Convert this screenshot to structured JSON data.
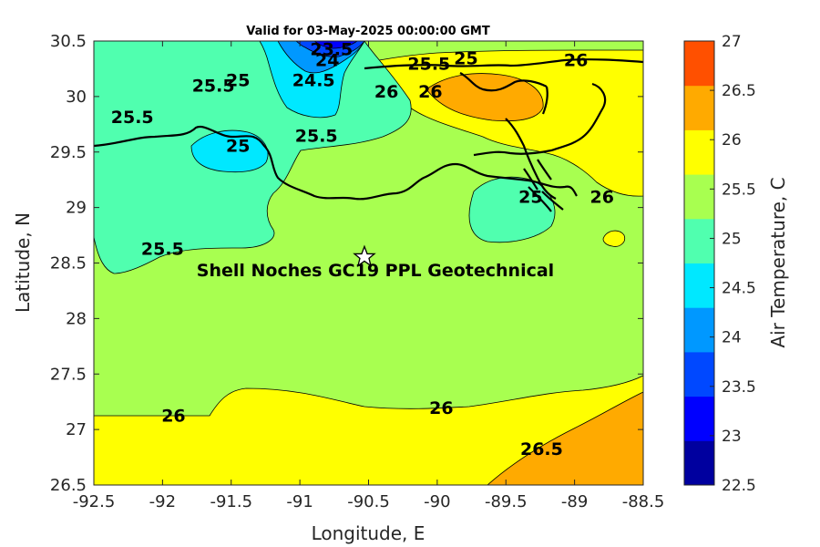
{
  "figure": {
    "title": "Valid for 03-May-2025 00:00:00 GMT",
    "xlabel": "Longitude, E",
    "ylabel": "Latitude, N",
    "xlim": [
      -92.5,
      -88.5
    ],
    "ylim": [
      26.5,
      30.5
    ],
    "xticks": [
      "-92.5",
      "-92",
      "-91.5",
      "-91",
      "-90.5",
      "-90",
      "-89.5",
      "-89",
      "-88.5"
    ],
    "yticks": [
      "26.5",
      "27",
      "27.5",
      "28",
      "28.5",
      "29",
      "29.5",
      "30",
      "30.5"
    ]
  },
  "colorbar": {
    "label": "Air Temperature, C",
    "range": [
      22.5,
      27
    ],
    "ticks": [
      "22.5",
      "23",
      "23.5",
      "24",
      "24.5",
      "25",
      "25.5",
      "26",
      "26.5",
      "27"
    ],
    "colors": [
      "#00009f",
      "#0000ff",
      "#0048ff",
      "#0098ff",
      "#00e8ff",
      "#50ffaf",
      "#a8ff50",
      "#ffff00",
      "#ffaa00",
      "#ff5000"
    ]
  },
  "annotation": {
    "text": "Shell Noches   GC19 PPL  Geotechnical",
    "site_marker": "star",
    "site_lon": -90.53,
    "site_lat": 28.55
  },
  "contour_labels": [
    {
      "text": "23.5",
      "lon": -90.77,
      "lat": 30.43
    },
    {
      "text": "24",
      "lon": -90.8,
      "lat": 30.33
    },
    {
      "text": "24.5",
      "lon": -90.9,
      "lat": 30.15
    },
    {
      "text": "25",
      "lon": -91.45,
      "lat": 30.15
    },
    {
      "text": "25.5",
      "lon": -91.63,
      "lat": 30.1
    },
    {
      "text": "25.5",
      "lon": -92.22,
      "lat": 29.82
    },
    {
      "text": "25.5",
      "lon": -90.88,
      "lat": 29.65
    },
    {
      "text": "25",
      "lon": -91.45,
      "lat": 29.56
    },
    {
      "text": "26",
      "lon": -90.37,
      "lat": 30.05
    },
    {
      "text": "25.5",
      "lon": -90.06,
      "lat": 30.3
    },
    {
      "text": "25",
      "lon": -89.79,
      "lat": 30.35
    },
    {
      "text": "26",
      "lon": -90.05,
      "lat": 30.05
    },
    {
      "text": "26",
      "lon": -88.99,
      "lat": 30.33
    },
    {
      "text": "25",
      "lon": -89.32,
      "lat": 29.1
    },
    {
      "text": "26",
      "lon": -88.8,
      "lat": 29.1
    },
    {
      "text": "25.5",
      "lon": -92.0,
      "lat": 28.63
    },
    {
      "text": "26",
      "lon": -91.92,
      "lat": 27.13
    },
    {
      "text": "26",
      "lon": -89.97,
      "lat": 27.2
    },
    {
      "text": "26.5",
      "lon": -89.24,
      "lat": 26.83
    }
  ]
}
